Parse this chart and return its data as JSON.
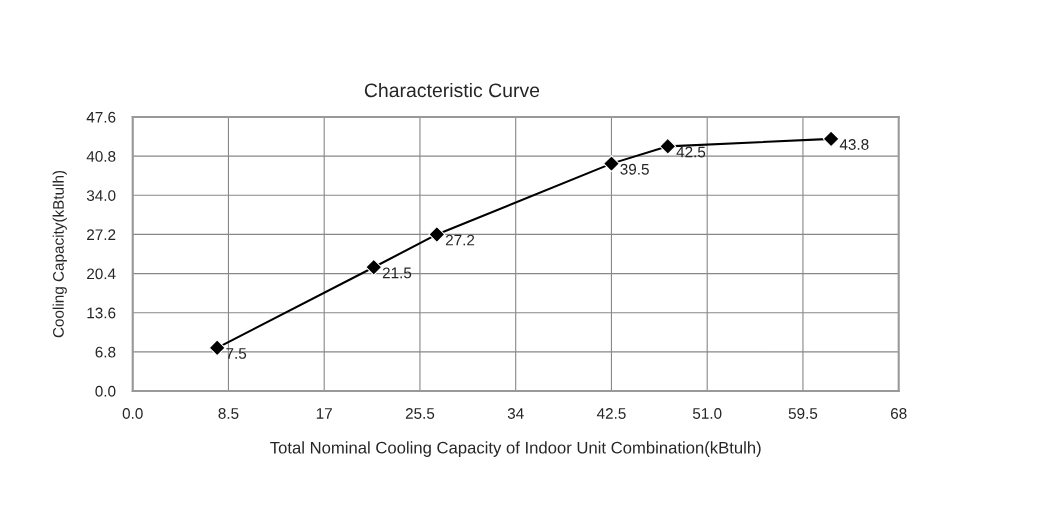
{
  "chart_data": {
    "type": "line",
    "title": "Characteristic Curve",
    "xlabel": "Total Nominal Cooling Capacity of Indoor Unit Combination(kBtulh)",
    "ylabel": "Cooling Capacity(kBtulh)",
    "x": [
      7.5,
      21.4,
      27,
      42.5,
      47.5,
      62
    ],
    "series": [
      {
        "color": "#000000",
        "values": [
          7.5,
          21.5,
          27.2,
          39.5,
          42.5,
          43.8
        ]
      }
    ],
    "xlim": [
      0,
      68
    ],
    "xticks": [
      {
        "value": 0,
        "label": "0.0"
      },
      8.5,
      17,
      25.5,
      34,
      42.5,
      {
        "value": 51,
        "label": "51.0"
      },
      59.5,
      68
    ],
    "ylim": [
      0,
      47.6
    ],
    "yticks": [
      {
        "value": 0,
        "label": "0.0"
      },
      6.8,
      13.6,
      {
        "value": 20.4,
        "label": "20.4"
      },
      27.2,
      {
        "value": 34,
        "label": "34.0"
      },
      40.8,
      47.6
    ],
    "grid": true,
    "marker": "diamond",
    "line_style": "solid",
    "data_labels": true,
    "legend": false
  }
}
